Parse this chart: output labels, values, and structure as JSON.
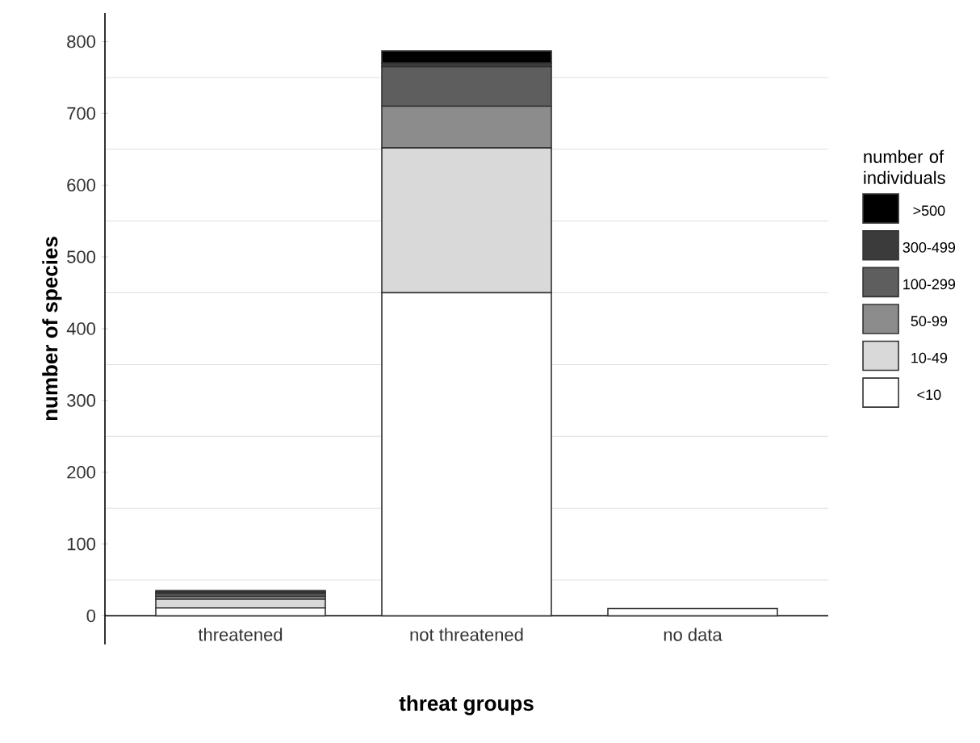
{
  "chart_data": {
    "type": "bar",
    "stacked": true,
    "xlabel": "threat groups",
    "ylabel": "number of species",
    "legend_title": "number of individuals",
    "legend": "right",
    "grid": "y",
    "categories": [
      "threatened",
      "not threatened",
      "no data"
    ],
    "ylim": [
      -40,
      840
    ],
    "yticks": [
      0,
      100,
      200,
      300,
      400,
      500,
      600,
      700,
      800
    ],
    "series": [
      {
        "name": "<10",
        "color": "#ffffff",
        "values": [
          11,
          450,
          10
        ]
      },
      {
        "name": "10-49",
        "color": "#d9d9d9",
        "values": [
          12,
          202,
          0
        ]
      },
      {
        "name": "50-99",
        "color": "#8c8c8c",
        "values": [
          4,
          58,
          0
        ]
      },
      {
        "name": "100-299",
        "color": "#5e5e5e",
        "values": [
          4,
          55,
          0
        ]
      },
      {
        "name": "300-499",
        "color": "#3b3b3b",
        "values": [
          2,
          5,
          0
        ]
      },
      {
        "name": ">500",
        "color": "#000000",
        "values": [
          2,
          17,
          0
        ]
      }
    ]
  }
}
